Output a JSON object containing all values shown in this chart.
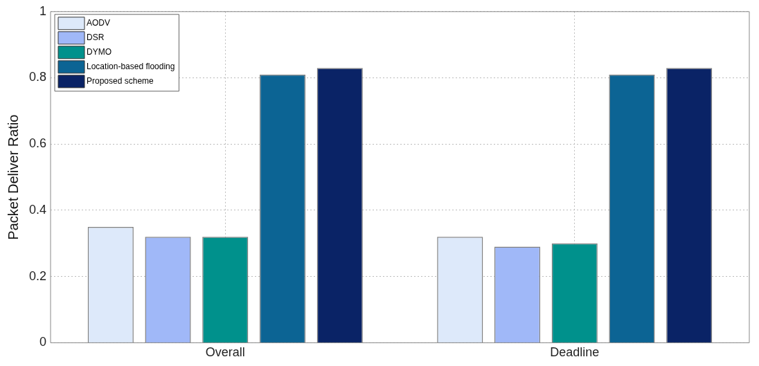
{
  "chart_data": {
    "type": "bar",
    "ylabel": "Packet Deliver Ratio",
    "categories": [
      "Overall",
      "Deadline"
    ],
    "series": [
      {
        "name": "AODV",
        "color": "#dde9fa",
        "values": [
          0.35,
          0.32
        ]
      },
      {
        "name": "DSR",
        "color": "#a0b8f8",
        "values": [
          0.32,
          0.29
        ]
      },
      {
        "name": "DYMO",
        "color": "#00918c",
        "values": [
          0.32,
          0.3
        ]
      },
      {
        "name": "Location-based flooding",
        "color": "#0c6494",
        "values": [
          0.81,
          0.81
        ]
      },
      {
        "name": "Proposed scheme",
        "color": "#0a2366",
        "values": [
          0.83,
          0.83
        ]
      }
    ],
    "ylim": [
      0,
      1
    ],
    "yticks": [
      0,
      0.2,
      0.4,
      0.6,
      0.8,
      1
    ],
    "grid": true,
    "legend": "top left"
  }
}
